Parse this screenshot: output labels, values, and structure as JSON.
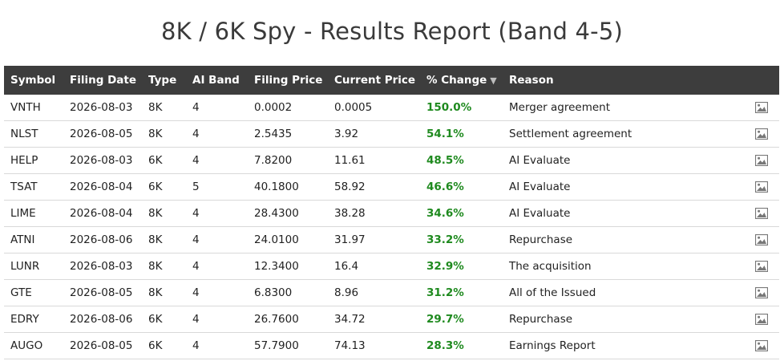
{
  "title": "8K / 6K Spy - Results Report (Band 4-5)",
  "columns": {
    "symbol": "Symbol",
    "filing_date": "Filing Date",
    "type": "Type",
    "ai_band": "AI Band",
    "filing_price": "Filing Price",
    "current_price": "Current Price",
    "pct_change": "% Change",
    "sort_indicator": "▼",
    "reason": "Reason"
  },
  "colors": {
    "header_bg": "#3d3d3d",
    "positive": "#1f8a1f",
    "row_border": "#d9d9d9"
  },
  "row_icon": "image-icon",
  "rows": [
    {
      "symbol": "VNTH",
      "filing_date": "2026-08-03",
      "type": "8K",
      "ai_band": "4",
      "filing_price": "0.0002",
      "current_price": "0.0005",
      "pct_change": "150.0%",
      "reason": "Merger agreement"
    },
    {
      "symbol": "NLST",
      "filing_date": "2026-08-05",
      "type": "8K",
      "ai_band": "4",
      "filing_price": "2.5435",
      "current_price": "3.92",
      "pct_change": "54.1%",
      "reason": "Settlement agreement"
    },
    {
      "symbol": "HELP",
      "filing_date": "2026-08-03",
      "type": "6K",
      "ai_band": "4",
      "filing_price": "7.8200",
      "current_price": "11.61",
      "pct_change": "48.5%",
      "reason": "AI Evaluate"
    },
    {
      "symbol": "TSAT",
      "filing_date": "2026-08-04",
      "type": "6K",
      "ai_band": "5",
      "filing_price": "40.1800",
      "current_price": "58.92",
      "pct_change": "46.6%",
      "reason": "AI Evaluate"
    },
    {
      "symbol": "LIME",
      "filing_date": "2026-08-04",
      "type": "8K",
      "ai_band": "4",
      "filing_price": "28.4300",
      "current_price": "38.28",
      "pct_change": "34.6%",
      "reason": "AI Evaluate"
    },
    {
      "symbol": "ATNI",
      "filing_date": "2026-08-06",
      "type": "8K",
      "ai_band": "4",
      "filing_price": "24.0100",
      "current_price": "31.97",
      "pct_change": "33.2%",
      "reason": "Repurchase"
    },
    {
      "symbol": "LUNR",
      "filing_date": "2026-08-03",
      "type": "8K",
      "ai_band": "4",
      "filing_price": "12.3400",
      "current_price": "16.4",
      "pct_change": "32.9%",
      "reason": "The acquisition"
    },
    {
      "symbol": "GTE",
      "filing_date": "2026-08-05",
      "type": "8K",
      "ai_band": "4",
      "filing_price": "6.8300",
      "current_price": "8.96",
      "pct_change": "31.2%",
      "reason": "All of the Issued"
    },
    {
      "symbol": "EDRY",
      "filing_date": "2026-08-06",
      "type": "6K",
      "ai_band": "4",
      "filing_price": "26.7600",
      "current_price": "34.72",
      "pct_change": "29.7%",
      "reason": "Repurchase"
    },
    {
      "symbol": "AUGO",
      "filing_date": "2026-08-05",
      "type": "6K",
      "ai_band": "4",
      "filing_price": "57.7900",
      "current_price": "74.13",
      "pct_change": "28.3%",
      "reason": "Earnings Report"
    }
  ]
}
